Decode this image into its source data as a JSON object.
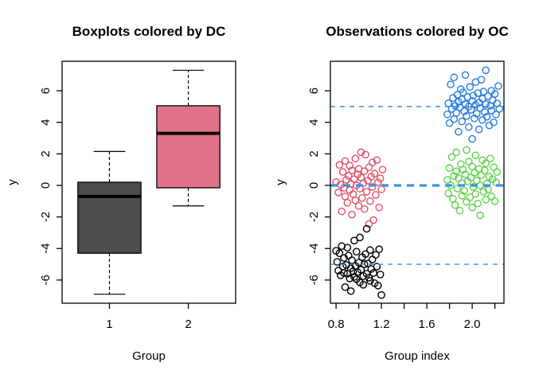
{
  "figure": {
    "background": "#ffffff"
  },
  "colors": {
    "box_group1_fill": "#4D4D4D",
    "box_group2_fill": "#E07387",
    "scatter_red": "#DF536B",
    "scatter_black": "#000000",
    "scatter_blue": "#2B7CE0",
    "scatter_green": "#61D04F",
    "reference_line": "#3792E1"
  },
  "chart_data": [
    {
      "type": "boxplot",
      "title": "Boxplots colored by DC",
      "xlabel": "Group",
      "ylabel": "y",
      "xlim": [
        0.4,
        2.6
      ],
      "ylim": [
        -7.47,
        7.87
      ],
      "grid": false,
      "x_ticks": [
        {
          "v": 1,
          "t": "1"
        },
        {
          "v": 2,
          "t": "2"
        }
      ],
      "y_ticks": [
        {
          "v": -6,
          "t": "-6"
        },
        {
          "v": -4,
          "t": "-4"
        },
        {
          "v": -2,
          "t": "-2"
        },
        {
          "v": 0,
          "t": "0"
        },
        {
          "v": 2,
          "t": "2"
        },
        {
          "v": 4,
          "t": "4"
        },
        {
          "v": 6,
          "t": "6"
        }
      ],
      "boxes": [
        {
          "group": "1",
          "center": 1,
          "width": 0.8,
          "color": "#4D4D4D",
          "whisker_low": -6.9,
          "q1": -4.3,
          "median": -0.7,
          "q3": 0.2,
          "whisker_high": 2.15
        },
        {
          "group": "2",
          "center": 2,
          "width": 0.8,
          "color": "#E07387",
          "whisker_low": -1.3,
          "q1": -0.15,
          "median": 3.3,
          "q3": 5.05,
          "whisker_high": 7.3
        }
      ]
    },
    {
      "type": "scatter",
      "title": "Observations colored by OC",
      "xlabel": "Group index",
      "ylabel": "y",
      "xlim": [
        0.75,
        2.28
      ],
      "ylim": [
        -7.47,
        7.87
      ],
      "grid": false,
      "x_ticks": [
        {
          "v": 0.8,
          "t": "0.8"
        },
        {
          "v": 1.0,
          "t": ""
        },
        {
          "v": 1.2,
          "t": "1.2"
        },
        {
          "v": 1.4,
          "t": ""
        },
        {
          "v": 1.6,
          "t": "1.6"
        },
        {
          "v": 1.8,
          "t": ""
        },
        {
          "v": 2.0,
          "t": "2.0"
        },
        {
          "v": 2.2,
          "t": ""
        }
      ],
      "y_ticks": [
        {
          "v": -6,
          "t": "-6"
        },
        {
          "v": -4,
          "t": "-4"
        },
        {
          "v": -2,
          "t": "-2"
        },
        {
          "v": 0,
          "t": "0"
        },
        {
          "v": 2,
          "t": "2"
        },
        {
          "v": 4,
          "t": "4"
        },
        {
          "v": 6,
          "t": "6"
        }
      ],
      "hlines": [
        {
          "y": 5,
          "stroke_width": 1.4
        },
        {
          "y": 0,
          "stroke_width": 3.2
        },
        {
          "y": -5,
          "stroke_width": 1.4
        }
      ],
      "series": [
        {
          "name": "red-cluster",
          "color": "#DF536B",
          "points": [
            [
              0.8,
              0.22
            ],
            [
              0.82,
              -0.45
            ],
            [
              0.83,
              1.3
            ],
            [
              0.84,
              0.05
            ],
            [
              0.85,
              -1.65
            ],
            [
              0.86,
              0.85
            ],
            [
              0.87,
              -0.15
            ],
            [
              0.88,
              1.55
            ],
            [
              0.88,
              -0.7
            ],
            [
              0.89,
              0.35
            ],
            [
              0.9,
              -1.1
            ],
            [
              0.91,
              0.6
            ],
            [
              0.92,
              1.25
            ],
            [
              0.92,
              -0.3
            ],
            [
              0.93,
              0.1
            ],
            [
              0.94,
              -1.85
            ],
            [
              0.94,
              0.95
            ],
            [
              0.95,
              -0.55
            ],
            [
              0.96,
              0.4
            ],
            [
              0.97,
              1.7
            ],
            [
              0.97,
              -0.95
            ],
            [
              0.98,
              0.0
            ],
            [
              0.99,
              0.7
            ],
            [
              1.0,
              -1.3
            ],
            [
              1.0,
              1.05
            ],
            [
              1.01,
              -0.2
            ],
            [
              1.02,
              0.5
            ],
            [
              1.02,
              2.1
            ],
            [
              1.03,
              -0.8
            ],
            [
              1.04,
              0.15
            ],
            [
              1.05,
              -1.5
            ],
            [
              1.05,
              0.9
            ],
            [
              1.06,
              1.95
            ],
            [
              1.07,
              -0.4
            ],
            [
              1.08,
              0.3
            ],
            [
              1.09,
              -2.45
            ],
            [
              1.09,
              1.15
            ],
            [
              1.1,
              -1.0
            ],
            [
              1.11,
              0.55
            ],
            [
              1.12,
              1.45
            ],
            [
              1.12,
              -0.1
            ],
            [
              1.13,
              -2.2
            ],
            [
              1.14,
              0.75
            ],
            [
              1.15,
              -0.6
            ],
            [
              1.16,
              1.6
            ],
            [
              1.17,
              0.2
            ],
            [
              1.18,
              -1.4
            ],
            [
              1.19,
              0.45
            ],
            [
              1.2,
              -0.25
            ],
            [
              1.21,
              1.0
            ]
          ]
        },
        {
          "name": "black-cluster",
          "color": "#000000",
          "points": [
            [
              0.8,
              -4.15
            ],
            [
              0.81,
              -4.85
            ],
            [
              0.82,
              -5.4
            ],
            [
              0.83,
              -4.3
            ],
            [
              0.84,
              -5.7
            ],
            [
              0.85,
              -3.85
            ],
            [
              0.86,
              -5.15
            ],
            [
              0.87,
              -5.55
            ],
            [
              0.87,
              -4.6
            ],
            [
              0.88,
              -6.45
            ],
            [
              0.89,
              -5.05
            ],
            [
              0.9,
              -3.95
            ],
            [
              0.9,
              -5.6
            ],
            [
              0.91,
              -4.45
            ],
            [
              0.92,
              -5.9
            ],
            [
              0.93,
              -5.25
            ],
            [
              0.93,
              -6.7
            ],
            [
              0.94,
              -4.75
            ],
            [
              0.95,
              -5.45
            ],
            [
              0.96,
              -3.5
            ],
            [
              0.96,
              -5.8
            ],
            [
              0.97,
              -5.1
            ],
            [
              0.98,
              -4.2
            ],
            [
              0.98,
              -5.95
            ],
            [
              0.99,
              -5.5
            ],
            [
              1.0,
              -4.9
            ],
            [
              1.01,
              -6.15
            ],
            [
              1.01,
              -3.3
            ],
            [
              1.02,
              -5.35
            ],
            [
              1.03,
              -4.55
            ],
            [
              1.04,
              -5.75
            ],
            [
              1.04,
              -6.3
            ],
            [
              1.05,
              -5.0
            ],
            [
              1.06,
              -4.35
            ],
            [
              1.07,
              -5.6
            ],
            [
              1.07,
              -2.75
            ],
            [
              1.08,
              -4.95
            ],
            [
              1.09,
              -5.85
            ],
            [
              1.1,
              -4.1
            ],
            [
              1.1,
              -6.05
            ],
            [
              1.11,
              -5.3
            ],
            [
              1.12,
              -4.7
            ],
            [
              1.13,
              -5.55
            ],
            [
              1.14,
              -6.2
            ],
            [
              1.15,
              -4.4
            ],
            [
              1.16,
              -5.15
            ],
            [
              1.2,
              -6.95
            ],
            [
              1.18,
              -4.05
            ],
            [
              1.19,
              -5.65
            ],
            [
              1.17,
              -6.35
            ]
          ]
        },
        {
          "name": "blue-cluster",
          "color": "#2B7CE0",
          "points": [
            [
              1.78,
              4.5
            ],
            [
              1.79,
              5.2
            ],
            [
              1.8,
              3.95
            ],
            [
              1.81,
              6.4
            ],
            [
              1.82,
              4.85
            ],
            [
              1.83,
              5.55
            ],
            [
              1.84,
              4.2
            ],
            [
              1.84,
              6.85
            ],
            [
              1.85,
              5.05
            ],
            [
              1.86,
              4.6
            ],
            [
              1.87,
              5.75
            ],
            [
              1.88,
              3.4
            ],
            [
              1.88,
              5.3
            ],
            [
              1.89,
              4.95
            ],
            [
              1.9,
              6.1
            ],
            [
              1.91,
              5.45
            ],
            [
              1.91,
              4.05
            ],
            [
              1.92,
              5.9
            ],
            [
              1.93,
              4.7
            ],
            [
              1.94,
              5.15
            ],
            [
              1.94,
              7.0
            ],
            [
              1.95,
              4.4
            ],
            [
              1.96,
              5.6
            ],
            [
              1.97,
              3.7
            ],
            [
              1.97,
              5.0
            ],
            [
              1.98,
              6.25
            ],
            [
              1.99,
              4.8
            ],
            [
              2.0,
              5.35
            ],
            [
              2.0,
              2.95
            ],
            [
              2.01,
              5.7
            ],
            [
              2.02,
              4.25
            ],
            [
              2.03,
              6.55
            ],
            [
              2.03,
              5.1
            ],
            [
              2.04,
              4.55
            ],
            [
              2.05,
              5.85
            ],
            [
              2.06,
              3.55
            ],
            [
              2.06,
              5.25
            ],
            [
              2.07,
              4.9
            ],
            [
              2.08,
              6.7
            ],
            [
              2.09,
              5.5
            ],
            [
              2.09,
              4.15
            ],
            [
              2.1,
              5.95
            ],
            [
              2.11,
              4.65
            ],
            [
              2.12,
              5.15
            ],
            [
              2.12,
              7.3
            ],
            [
              2.13,
              4.35
            ],
            [
              2.14,
              5.65
            ],
            [
              2.15,
              3.8
            ],
            [
              2.16,
              5.05
            ],
            [
              2.17,
              6.0
            ],
            [
              2.17,
              4.75
            ],
            [
              2.18,
              5.4
            ],
            [
              2.19,
              4.0
            ],
            [
              2.2,
              5.8
            ],
            [
              2.21,
              4.5
            ],
            [
              2.22,
              5.2
            ],
            [
              2.23,
              6.3
            ],
            [
              2.24,
              4.85
            ]
          ]
        },
        {
          "name": "green-cluster",
          "color": "#61D04F",
          "points": [
            [
              1.78,
              0.35
            ],
            [
              1.79,
              -0.5
            ],
            [
              1.8,
              1.1
            ],
            [
              1.81,
              0.0
            ],
            [
              1.82,
              1.8
            ],
            [
              1.83,
              -0.85
            ],
            [
              1.84,
              0.6
            ],
            [
              1.85,
              -1.25
            ],
            [
              1.86,
              0.9
            ],
            [
              1.86,
              2.1
            ],
            [
              1.87,
              -0.2
            ],
            [
              1.88,
              0.45
            ],
            [
              1.89,
              -1.6
            ],
            [
              1.9,
              1.35
            ],
            [
              1.91,
              0.15
            ],
            [
              1.91,
              -0.65
            ],
            [
              1.92,
              1.0
            ],
            [
              1.93,
              -0.35
            ],
            [
              1.94,
              0.7
            ],
            [
              1.95,
              2.25
            ],
            [
              1.95,
              -1.05
            ],
            [
              1.96,
              0.25
            ],
            [
              1.97,
              1.5
            ],
            [
              1.98,
              -0.75
            ],
            [
              1.99,
              0.5
            ],
            [
              2.0,
              -1.4
            ],
            [
              2.0,
              1.2
            ],
            [
              2.01,
              -0.1
            ],
            [
              2.02,
              0.8
            ],
            [
              2.03,
              1.9
            ],
            [
              2.03,
              -0.55
            ],
            [
              2.04,
              0.3
            ],
            [
              2.05,
              -1.15
            ],
            [
              2.06,
              1.05
            ],
            [
              2.07,
              0.0
            ],
            [
              2.07,
              -1.9
            ],
            [
              2.08,
              0.65
            ],
            [
              2.09,
              1.6
            ],
            [
              2.1,
              -0.4
            ],
            [
              2.11,
              0.95
            ],
            [
              2.12,
              -0.9
            ],
            [
              2.12,
              1.4
            ],
            [
              2.13,
              0.1
            ],
            [
              2.14,
              -0.25
            ],
            [
              2.15,
              0.55
            ],
            [
              2.16,
              1.7
            ],
            [
              2.17,
              -0.7
            ],
            [
              2.18,
              0.4
            ],
            [
              2.19,
              1.15
            ],
            [
              2.2,
              -1.0
            ],
            [
              2.21,
              0.2
            ],
            [
              2.22,
              0.85
            ]
          ]
        }
      ]
    }
  ]
}
